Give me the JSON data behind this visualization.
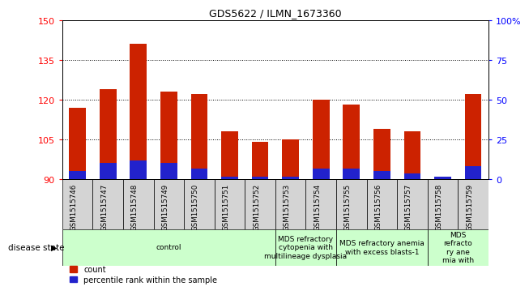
{
  "title": "GDS5622 / ILMN_1673360",
  "samples": [
    "GSM1515746",
    "GSM1515747",
    "GSM1515748",
    "GSM1515749",
    "GSM1515750",
    "GSM1515751",
    "GSM1515752",
    "GSM1515753",
    "GSM1515754",
    "GSM1515755",
    "GSM1515756",
    "GSM1515757",
    "GSM1515758",
    "GSM1515759"
  ],
  "count_values": [
    117,
    124,
    141,
    123,
    122,
    108,
    104,
    105,
    120,
    118,
    109,
    108,
    91,
    122
  ],
  "percentile_abs": [
    93,
    96,
    97,
    96,
    94,
    91,
    91,
    91,
    94,
    94,
    93,
    92,
    91,
    95
  ],
  "y_min": 90,
  "y_max": 150,
  "y_ticks": [
    90,
    105,
    120,
    135,
    150
  ],
  "y2_ticks": [
    0,
    25,
    50,
    75,
    100
  ],
  "bar_color": "#cc2200",
  "blue_color": "#2222cc",
  "bar_width": 0.55,
  "group_defs": [
    {
      "start": 0,
      "end": 6,
      "label": "control",
      "color": "#ccffcc"
    },
    {
      "start": 7,
      "end": 8,
      "label": "MDS refractory\ncytopenia with\nmultilineage dysplasia",
      "color": "#ccffcc"
    },
    {
      "start": 9,
      "end": 11,
      "label": "MDS refractory anemia\nwith excess blasts-1",
      "color": "#ccffcc"
    },
    {
      "start": 12,
      "end": 13,
      "label": "MDS\nrefracto\nry ane\nmia with",
      "color": "#ccffcc"
    }
  ],
  "disease_state_label": "disease state",
  "legend_count": "count",
  "legend_percentile": "percentile rank within the sample"
}
